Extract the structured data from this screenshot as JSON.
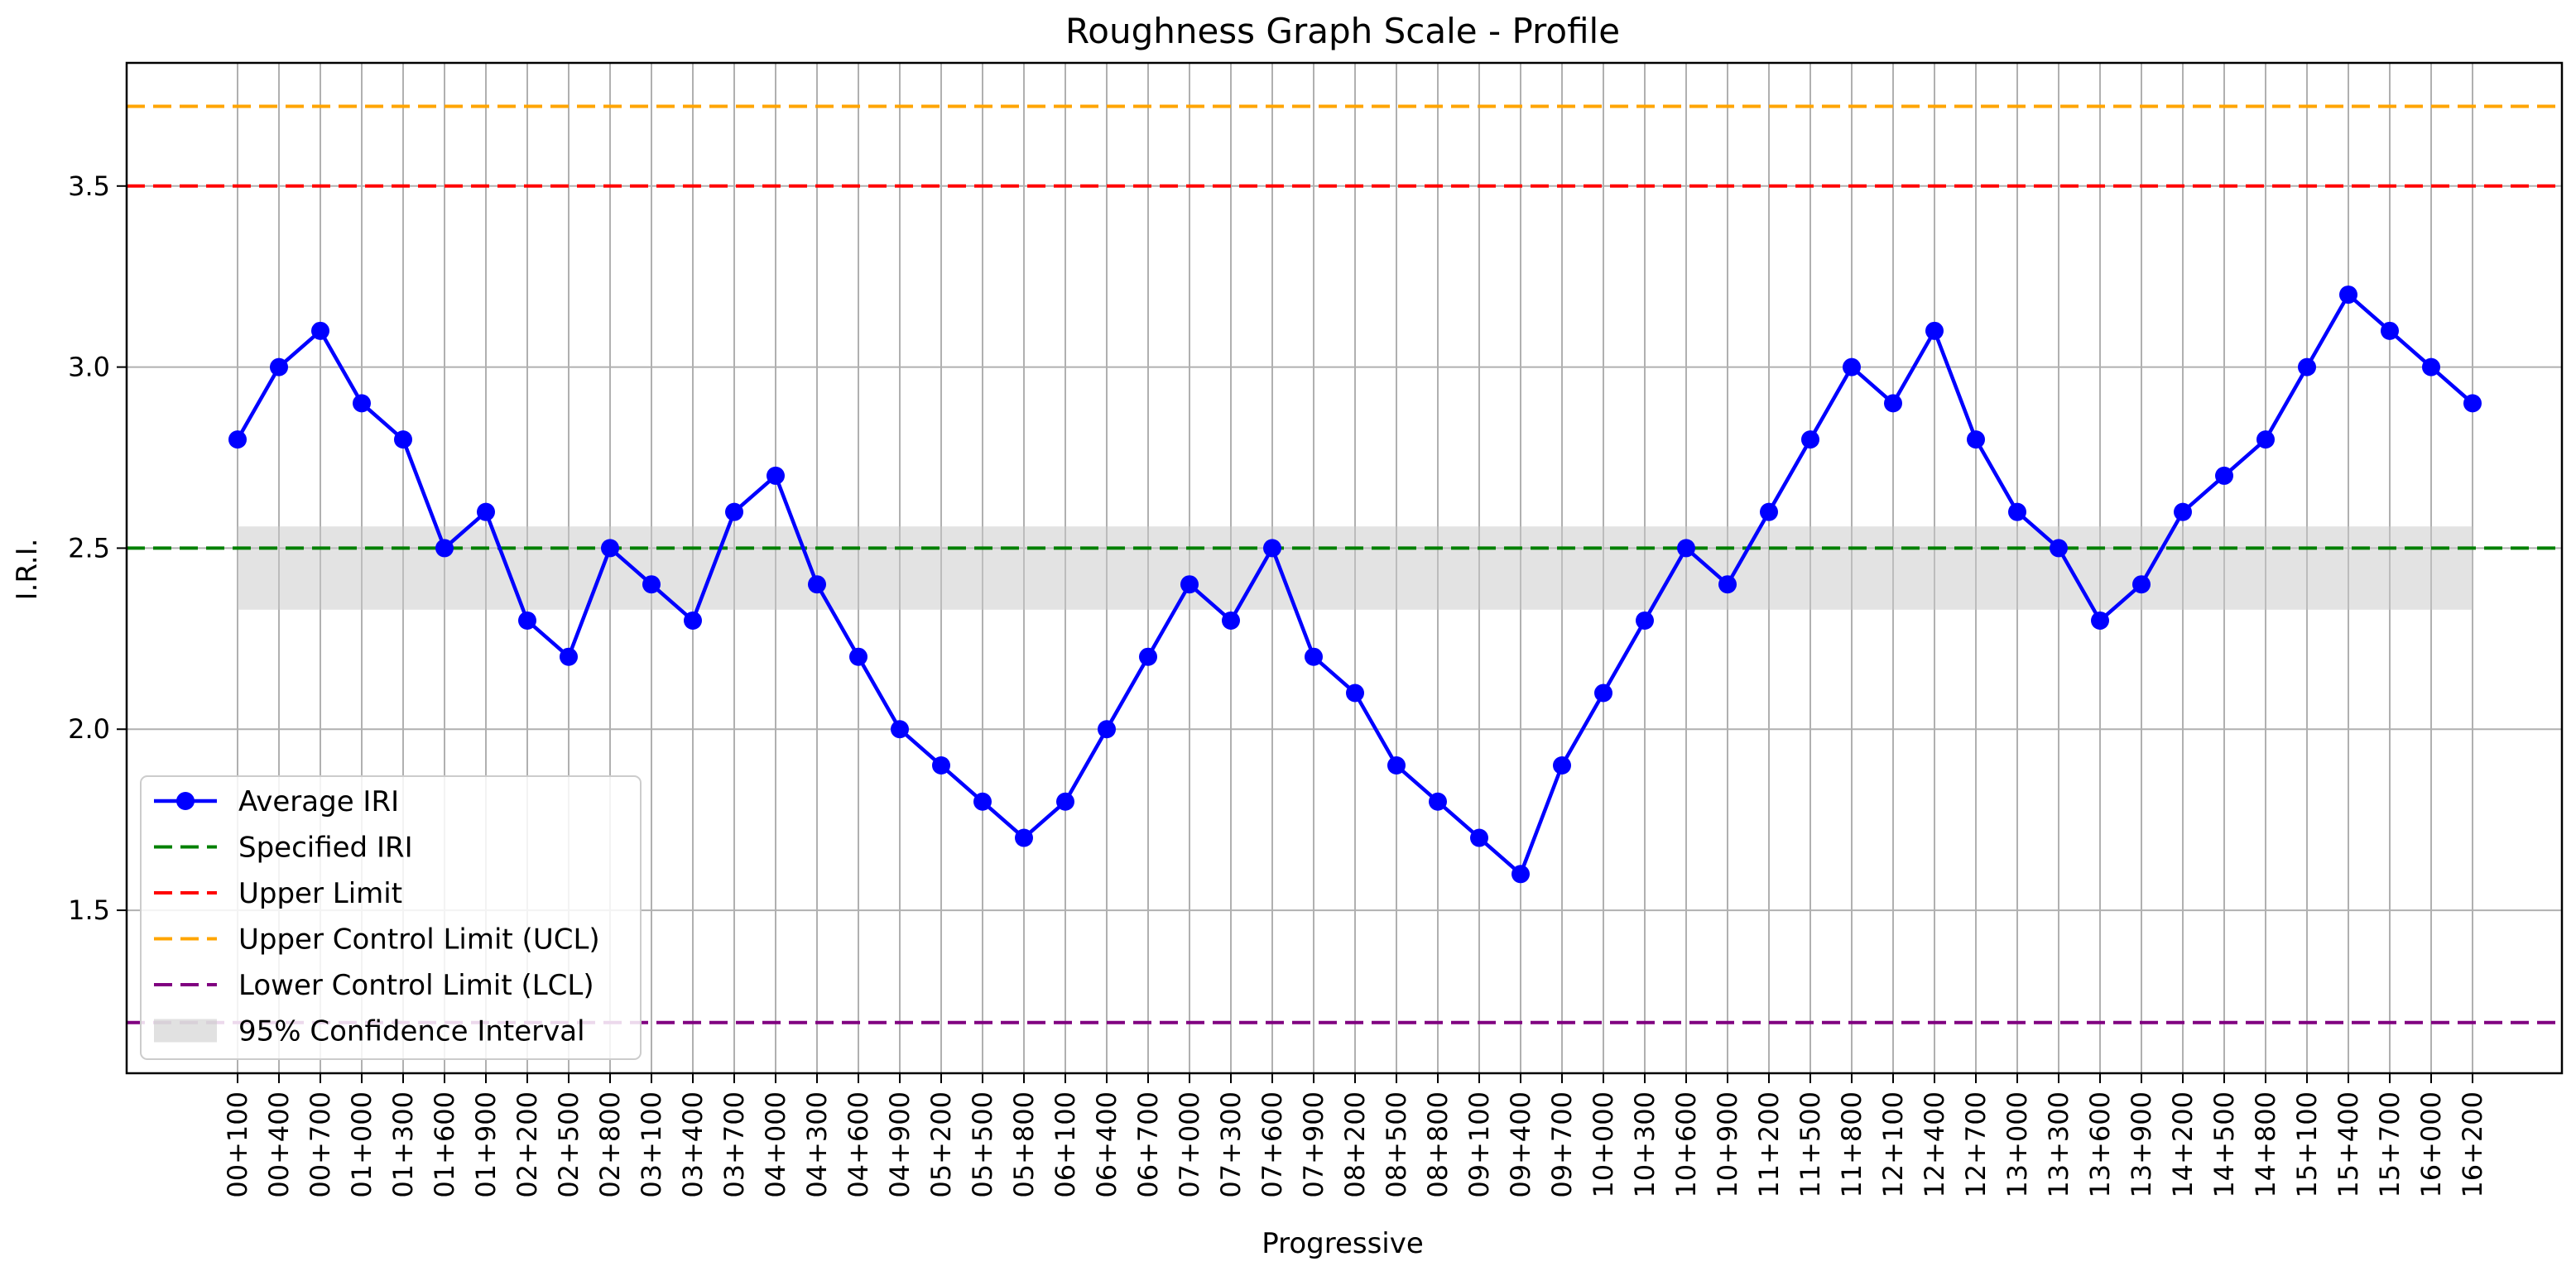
{
  "chart_data": {
    "type": "line",
    "title": "Roughness Graph Scale - Profile",
    "xlabel": "Progressive",
    "ylabel": "I.R.I.",
    "ylim": [
      1.05,
      3.84
    ],
    "yticks": [
      "1.5",
      "2.0",
      "2.5",
      "3.0",
      "3.5"
    ],
    "grid": true,
    "legend_position": "lower-left",
    "categories": [
      "00+100",
      "00+400",
      "00+700",
      "01+000",
      "01+300",
      "01+600",
      "01+900",
      "02+200",
      "02+500",
      "02+800",
      "03+100",
      "03+400",
      "03+700",
      "04+000",
      "04+300",
      "04+600",
      "04+900",
      "05+200",
      "05+500",
      "05+800",
      "06+100",
      "06+400",
      "06+700",
      "07+000",
      "07+300",
      "07+600",
      "07+900",
      "08+200",
      "08+500",
      "08+800",
      "09+100",
      "09+400",
      "09+700",
      "10+000",
      "10+300",
      "10+600",
      "10+900",
      "11+200",
      "11+500",
      "11+800",
      "12+100",
      "12+400",
      "12+700",
      "13+000",
      "13+300",
      "13+600",
      "13+900",
      "14+200",
      "14+500",
      "14+800",
      "15+100",
      "15+400",
      "15+700",
      "16+000",
      "16+200"
    ],
    "series": [
      {
        "name": "Average IRI",
        "color": "#0000ff",
        "marker": "circle",
        "values": [
          2.8,
          3.0,
          3.1,
          2.9,
          2.8,
          2.5,
          2.6,
          2.3,
          2.2,
          2.5,
          2.4,
          2.3,
          2.6,
          2.7,
          2.4,
          2.2,
          2.0,
          1.9,
          1.8,
          1.7,
          1.8,
          2.0,
          2.2,
          2.4,
          2.3,
          2.5,
          2.2,
          2.1,
          1.9,
          1.8,
          1.7,
          1.6,
          1.9,
          2.1,
          2.3,
          2.5,
          2.4,
          2.6,
          2.8,
          3.0,
          2.9,
          3.1,
          2.8,
          2.6,
          2.5,
          2.3,
          2.4,
          2.6,
          2.7,
          2.8,
          3.0,
          3.2,
          3.1,
          3.0,
          2.9
        ]
      }
    ],
    "reference_lines": [
      {
        "name": "Specified IRI",
        "value": 2.5,
        "color": "#008000",
        "style": "dashed"
      },
      {
        "name": "Upper Limit",
        "value": 3.5,
        "color": "#ff0000",
        "style": "dashed"
      },
      {
        "name": "Upper Control Limit (UCL)",
        "value": 3.72,
        "color": "#ffa500",
        "style": "dashed"
      },
      {
        "name": "Lower Control Limit (LCL)",
        "value": 1.19,
        "color": "#800080",
        "style": "dashed"
      }
    ],
    "confidence_interval": {
      "name": "95% Confidence Interval",
      "low": 2.33,
      "high": 2.56,
      "color": "#c8c8c8"
    },
    "legend": [
      "Average IRI",
      "Specified IRI",
      "Upper Limit",
      "Upper Control Limit (UCL)",
      "Lower Control Limit (LCL)",
      "95% Confidence Interval"
    ]
  }
}
